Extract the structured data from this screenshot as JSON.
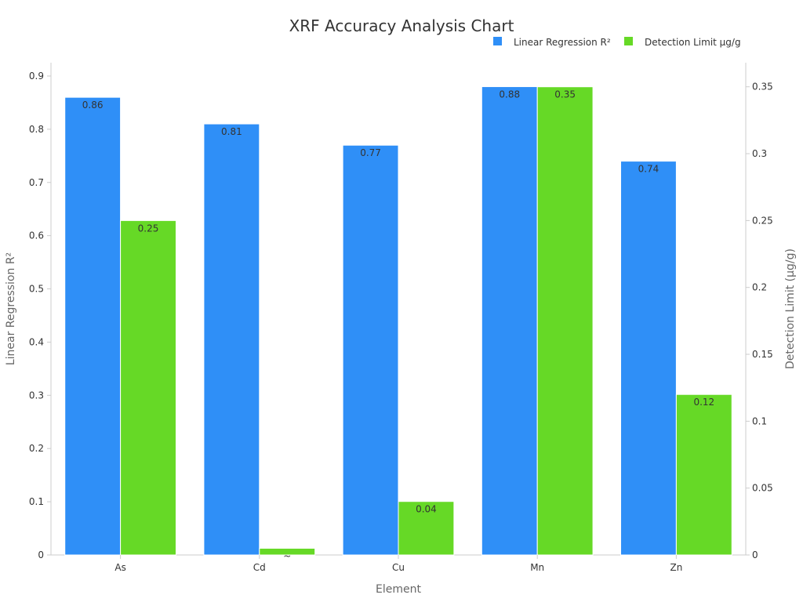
{
  "chart_data": {
    "type": "bar",
    "title": "XRF Accuracy Analysis Chart",
    "xlabel": "Element",
    "ylabel": "Linear Regression R²",
    "y2label": "Detection Limit (μg/g)",
    "categories": [
      "As",
      "Cd",
      "Cu",
      "Mn",
      "Zn"
    ],
    "series": [
      {
        "name": "Linear Regression R²",
        "axis": "left",
        "color": "#2f8ff7",
        "values": [
          0.86,
          0.81,
          0.77,
          0.88,
          0.74
        ],
        "labels": [
          "0.86",
          "0.81",
          "0.77",
          "0.88",
          "0.74"
        ]
      },
      {
        "name": "Detection Limit μg/g",
        "axis": "right",
        "color": "#66d926",
        "values": [
          0.25,
          0.005,
          0.04,
          0.35,
          0.12
        ],
        "labels": [
          "0.25",
          "~",
          "0.04",
          "0.35",
          "0.12"
        ]
      }
    ],
    "ylim": [
      0,
      0.925
    ],
    "y2lim": [
      0,
      0.368
    ],
    "yticks": [
      0,
      0.1,
      0.2,
      0.3,
      0.4,
      0.5,
      0.6,
      0.7,
      0.8,
      0.9
    ],
    "y2ticks": [
      0,
      0.05,
      0.1,
      0.15,
      0.2,
      0.25,
      0.3,
      0.35
    ],
    "legend_position": "top-right",
    "grid": false
  }
}
